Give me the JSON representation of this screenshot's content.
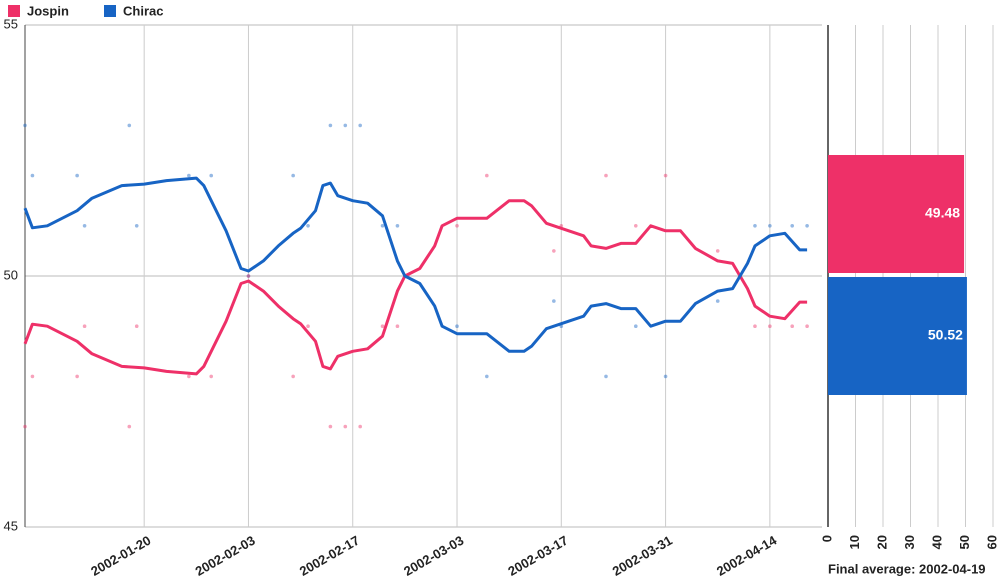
{
  "chart_data": [
    {
      "type": "line",
      "x": [
        "2002-01-04",
        "2002-01-05",
        "2002-01-07",
        "2002-01-11",
        "2002-01-13",
        "2002-01-17",
        "2002-01-20",
        "2002-01-23",
        "2002-01-27",
        "2002-01-28",
        "2002-01-31",
        "2002-02-02",
        "2002-02-03",
        "2002-02-05",
        "2002-02-07",
        "2002-02-09",
        "2002-02-10",
        "2002-02-12",
        "2002-02-13",
        "2002-02-14",
        "2002-02-15",
        "2002-02-17",
        "2002-02-19",
        "2002-02-21",
        "2002-02-23",
        "2002-02-24",
        "2002-02-26",
        "2002-02-28",
        "2002-03-01",
        "2002-03-03",
        "2002-03-07",
        "2002-03-10",
        "2002-03-12",
        "2002-03-13",
        "2002-03-15",
        "2002-03-18",
        "2002-03-20",
        "2002-03-21",
        "2002-03-23",
        "2002-03-25",
        "2002-03-27",
        "2002-03-29",
        "2002-03-31",
        "2002-04-02",
        "2002-04-04",
        "2002-04-07",
        "2002-04-09",
        "2002-04-11",
        "2002-04-12",
        "2002-04-14",
        "2002-04-16",
        "2002-04-18",
        "2002-04-19"
      ],
      "series": [
        {
          "name": "Jospin",
          "color": "#ee3068",
          "values": [
            48.65,
            49.04,
            49.0,
            48.7,
            48.45,
            48.2,
            48.17,
            48.1,
            48.05,
            48.2,
            49.1,
            49.85,
            49.9,
            49.7,
            49.4,
            49.15,
            49.05,
            48.7,
            48.2,
            48.15,
            48.4,
            48.5,
            48.55,
            48.8,
            49.7,
            50.0,
            50.15,
            50.6,
            51.0,
            51.15,
            51.15,
            51.5,
            51.5,
            51.4,
            51.05,
            50.9,
            50.8,
            50.6,
            50.55,
            50.65,
            50.65,
            51.0,
            50.9,
            50.9,
            50.55,
            50.3,
            50.25,
            49.75,
            49.4,
            49.2,
            49.15,
            49.48,
            49.48
          ]
        },
        {
          "name": "Chirac",
          "color": "#1764c4",
          "values": [
            51.35,
            50.96,
            51.0,
            51.3,
            51.55,
            51.8,
            51.83,
            51.9,
            51.95,
            51.8,
            50.9,
            50.15,
            50.1,
            50.3,
            50.6,
            50.85,
            50.95,
            51.3,
            51.8,
            51.85,
            51.6,
            51.5,
            51.45,
            51.2,
            50.3,
            50.0,
            49.85,
            49.4,
            49.0,
            48.85,
            48.85,
            48.5,
            48.5,
            48.6,
            48.95,
            49.1,
            49.2,
            49.4,
            49.45,
            49.35,
            49.35,
            49.0,
            49.1,
            49.1,
            49.45,
            49.7,
            49.75,
            50.25,
            50.6,
            50.8,
            50.85,
            50.52,
            50.52
          ]
        }
      ],
      "points": [
        {
          "color": "#1764c4",
          "x": [
            "2002-01-04",
            "2002-01-05",
            "2002-01-11",
            "2002-01-12",
            "2002-01-18",
            "2002-01-19",
            "2002-01-26",
            "2002-01-29",
            "2002-02-03",
            "2002-02-09",
            "2002-02-11",
            "2002-02-14",
            "2002-02-16",
            "2002-02-18",
            "2002-02-21",
            "2002-02-23",
            "2002-03-03",
            "2002-03-07",
            "2002-03-16",
            "2002-03-17",
            "2002-03-23",
            "2002-03-27",
            "2002-03-31",
            "2002-04-07",
            "2002-04-12",
            "2002-04-14",
            "2002-04-17",
            "2002-04-19"
          ],
          "values": [
            53,
            52,
            52,
            51,
            53,
            51,
            52,
            52,
            50,
            52,
            51,
            53,
            53,
            53,
            51,
            51,
            49,
            48,
            49.5,
            49,
            48,
            49,
            48,
            49.5,
            51,
            51,
            51,
            51
          ]
        },
        {
          "color": "#ee3068",
          "x": [
            "2002-01-04",
            "2002-01-05",
            "2002-01-11",
            "2002-01-12",
            "2002-01-18",
            "2002-01-19",
            "2002-01-26",
            "2002-01-29",
            "2002-02-03",
            "2002-02-09",
            "2002-02-11",
            "2002-02-14",
            "2002-02-16",
            "2002-02-18",
            "2002-02-21",
            "2002-02-23",
            "2002-03-03",
            "2002-03-07",
            "2002-03-16",
            "2002-03-17",
            "2002-03-23",
            "2002-03-27",
            "2002-03-31",
            "2002-04-07",
            "2002-04-12",
            "2002-04-14",
            "2002-04-17",
            "2002-04-19"
          ],
          "values": [
            47,
            48,
            48,
            49,
            47,
            49,
            48,
            48,
            50,
            48,
            49,
            47,
            47,
            47,
            49,
            49,
            51,
            52,
            50.5,
            51,
            52,
            51,
            52,
            50.5,
            49,
            49,
            49,
            49
          ]
        }
      ],
      "xlim": [
        "2002-01-04",
        "2002-04-21"
      ],
      "xticks": [
        "2002-01-20",
        "2002-02-03",
        "2002-02-17",
        "2002-03-03",
        "2002-03-17",
        "2002-03-31",
        "2002-04-14"
      ],
      "ylim": [
        45,
        55
      ],
      "yticks": [
        45,
        50,
        55
      ],
      "grid": true
    },
    {
      "type": "hbar",
      "title": "Final average: 2002-04-19",
      "values": [
        49.48,
        50.52
      ],
      "colors": [
        "#ee3068",
        "#1764c4"
      ],
      "xlim": [
        0,
        60
      ],
      "xticks": [
        0,
        10,
        20,
        30,
        40,
        50,
        60
      ]
    }
  ]
}
